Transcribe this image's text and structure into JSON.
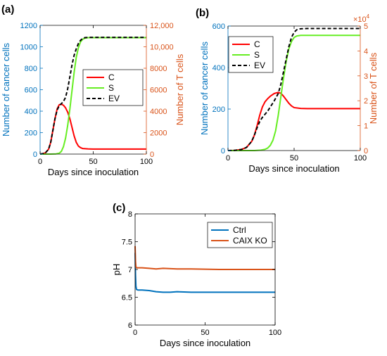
{
  "colors": {
    "left_axis": "#0072BD",
    "right_axis": "#D95319",
    "c_line": "#FF0000",
    "s_line": "#66EE22",
    "ev_line": "#000000",
    "ctrl_line": "#0072BD",
    "caix_line": "#D95319"
  },
  "chart_data": [
    {
      "panel": "(a)",
      "type": "line",
      "xlabel": "Days since inoculation",
      "ylabel": "Number of cancer cells",
      "ylabel_right": "Number of T cells",
      "xlim": [
        0,
        100
      ],
      "ylim": [
        0,
        1200
      ],
      "ylim_right": [
        0,
        12000
      ],
      "xticks": [
        "0",
        "50",
        "100"
      ],
      "yticks": [
        "0",
        "200",
        "400",
        "600",
        "800",
        "1000",
        "1200"
      ],
      "yticks_right": [
        "0",
        "2000",
        "4000",
        "6000",
        "8000",
        "10,000",
        "12,000"
      ],
      "legend_position": "right-middle",
      "series": [
        {
          "name": "C",
          "axis": "left",
          "style": "solid",
          "x": [
            0,
            2,
            5,
            8,
            10,
            12,
            14,
            16,
            18,
            20,
            22,
            24,
            26,
            28,
            30,
            32,
            34,
            36,
            38,
            40,
            45,
            50,
            60,
            70,
            80,
            90,
            100
          ],
          "y": [
            0,
            3,
            12,
            45,
            110,
            220,
            330,
            420,
            460,
            465,
            455,
            430,
            390,
            330,
            250,
            170,
            110,
            75,
            60,
            52,
            48,
            47,
            47,
            47,
            47,
            47,
            47
          ]
        },
        {
          "name": "S",
          "axis": "left",
          "style": "solid",
          "x": [
            0,
            10,
            15,
            18,
            20,
            22,
            24,
            26,
            28,
            30,
            32,
            34,
            36,
            38,
            40,
            42,
            45,
            50,
            60,
            80,
            100
          ],
          "y": [
            0,
            0,
            2,
            8,
            25,
            70,
            150,
            270,
            420,
            590,
            760,
            900,
            990,
            1045,
            1070,
            1080,
            1085,
            1085,
            1085,
            1085,
            1085
          ]
        },
        {
          "name": "EV",
          "axis": "left",
          "style": "dashed",
          "x": [
            0,
            2,
            5,
            8,
            10,
            12,
            14,
            16,
            18,
            20,
            22,
            24,
            26,
            28,
            30,
            32,
            34,
            36,
            38,
            40,
            42,
            45,
            50,
            60,
            80,
            100
          ],
          "y": [
            0,
            3,
            12,
            45,
            110,
            220,
            330,
            410,
            450,
            470,
            490,
            530,
            610,
            720,
            830,
            920,
            980,
            1030,
            1060,
            1078,
            1085,
            1087,
            1088,
            1088,
            1088,
            1088
          ]
        }
      ]
    },
    {
      "panel": "(b)",
      "type": "line",
      "xlabel": "Days since inoculation",
      "ylabel": "Number of cancer cells",
      "ylabel_right": "Number of T cells",
      "right_multiplier": "×10",
      "right_multiplier_exp": "4",
      "xlim": [
        0,
        100
      ],
      "ylim": [
        0,
        600
      ],
      "ylim_right": [
        0,
        5
      ],
      "xticks": [
        "0",
        "50",
        "100"
      ],
      "yticks": [
        "0",
        "200",
        "400",
        "600"
      ],
      "yticks_right": [
        "0",
        "1",
        "2",
        "3",
        "4",
        "5"
      ],
      "legend_position": "top-left",
      "series": [
        {
          "name": "C",
          "axis": "left",
          "style": "solid",
          "x": [
            0,
            5,
            10,
            14,
            18,
            20,
            22,
            24,
            26,
            28,
            30,
            32,
            35,
            38,
            40,
            42,
            44,
            46,
            48,
            50,
            55,
            60,
            70,
            80,
            100
          ],
          "y": [
            0,
            1,
            5,
            15,
            45,
            75,
            120,
            170,
            210,
            235,
            250,
            262,
            275,
            280,
            276,
            262,
            245,
            228,
            215,
            207,
            203,
            202,
            202,
            202,
            202
          ]
        },
        {
          "name": "S",
          "axis": "left",
          "style": "solid",
          "x": [
            0,
            20,
            25,
            28,
            30,
            32,
            34,
            36,
            38,
            40,
            42,
            44,
            46,
            48,
            50,
            52,
            55,
            60,
            70,
            80,
            100
          ],
          "y": [
            0,
            0,
            2,
            6,
            12,
            25,
            50,
            95,
            170,
            260,
            350,
            430,
            490,
            525,
            545,
            552,
            555,
            555,
            555,
            555,
            555
          ]
        },
        {
          "name": "EV",
          "axis": "left",
          "style": "dashed",
          "x": [
            0,
            5,
            10,
            14,
            18,
            20,
            22,
            24,
            26,
            28,
            30,
            32,
            35,
            38,
            40,
            42,
            44,
            46,
            48,
            50,
            52,
            55,
            60,
            70,
            80,
            100
          ],
          "y": [
            0,
            1,
            5,
            15,
            45,
            75,
            110,
            140,
            160,
            175,
            190,
            210,
            240,
            275,
            320,
            380,
            440,
            500,
            545,
            570,
            582,
            587,
            588,
            588,
            588,
            588
          ]
        }
      ]
    },
    {
      "panel": "(c)",
      "type": "line",
      "xlabel": "Days since inoculation",
      "ylabel": "pH",
      "xlim": [
        0,
        100
      ],
      "ylim": [
        6,
        8
      ],
      "xticks": [
        "0",
        "50",
        "100"
      ],
      "yticks": [
        "6",
        "6.5",
        "7",
        "7.5",
        "8"
      ],
      "legend_position": "top-right",
      "series": [
        {
          "name": "Ctrl",
          "style": "solid",
          "x": [
            0,
            0.3,
            0.6,
            1,
            2,
            5,
            10,
            15,
            20,
            25,
            30,
            35,
            40,
            50,
            60,
            70,
            80,
            90,
            100
          ],
          "y": [
            7.3,
            6.9,
            6.7,
            6.64,
            6.63,
            6.63,
            6.62,
            6.6,
            6.59,
            6.59,
            6.6,
            6.595,
            6.59,
            6.59,
            6.59,
            6.59,
            6.59,
            6.59,
            6.59
          ]
        },
        {
          "name": "CAIX KO",
          "style": "solid",
          "x": [
            0,
            0.3,
            0.6,
            1,
            2,
            5,
            10,
            15,
            20,
            30,
            40,
            50,
            60,
            70,
            80,
            90,
            100
          ],
          "y": [
            7.42,
            7.15,
            7.05,
            7.03,
            7.03,
            7.03,
            7.02,
            7.01,
            7.02,
            7.01,
            7.01,
            7.005,
            7.0,
            7.0,
            7.0,
            7.0,
            7.0
          ]
        }
      ]
    }
  ]
}
